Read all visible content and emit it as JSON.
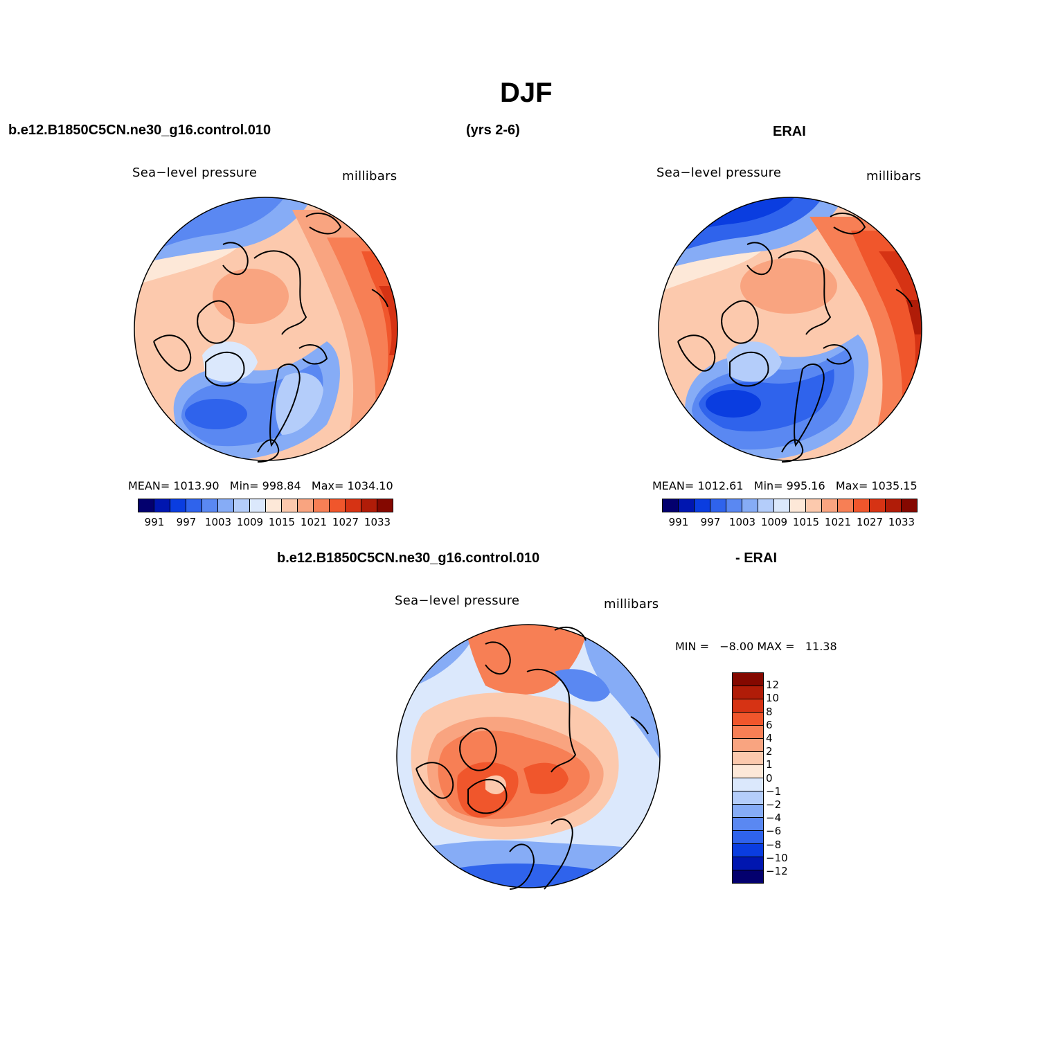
{
  "figure": {
    "title": "DJF",
    "top_left_case": "b.e12.B1850C5CN.ne30_g16.control.010",
    "top_years": "(yrs 2-6)",
    "top_right_case": "ERAI"
  },
  "panel_model": {
    "variable": "Sea−level pressure",
    "units": "millibars",
    "mean_label": "MEAN=",
    "mean": "1013.90",
    "min_label": "Min=",
    "min": "998.84",
    "max_label": "Max=",
    "max": "1034.10"
  },
  "panel_obs": {
    "variable": "Sea−level pressure",
    "units": "millibars",
    "mean_label": "MEAN=",
    "mean": "1012.61",
    "min_label": "Min=",
    "min": "995.16",
    "max_label": "Max=",
    "max": "1035.15"
  },
  "panel_diff": {
    "title_left": "b.e12.B1850C5CN.ne30_g16.control.010",
    "title_right": "- ERAI",
    "variable": "Sea−level pressure",
    "units": "millibars",
    "min_label": "MIN =",
    "min": "−8.00",
    "max_label": "MAX =",
    "max": "11.38"
  },
  "colorbar_abs": {
    "colors": [
      "#03006e",
      "#0016b0",
      "#0a3de0",
      "#2f63ec",
      "#5a88f2",
      "#86acf6",
      "#b4cdfa",
      "#dbe8fc",
      "#fde8d8",
      "#fcc9ad",
      "#f9a480",
      "#f77f55",
      "#f0562c",
      "#d63314",
      "#b01c08",
      "#840800"
    ],
    "ticks": [
      "991",
      "997",
      "1003",
      "1009",
      "1015",
      "1021",
      "1027",
      "1033"
    ]
  },
  "colorbar_diff": {
    "colors": [
      "#840800",
      "#b01c08",
      "#d63314",
      "#f0562c",
      "#f77f55",
      "#f9a480",
      "#fcc9ad",
      "#fde8d8",
      "#dbe8fc",
      "#b4cdfa",
      "#86acf6",
      "#5a88f2",
      "#2f63ec",
      "#0a3de0",
      "#0016b0",
      "#03006e"
    ],
    "ticks": [
      "12",
      "10",
      "8",
      "6",
      "4",
      "2",
      "1",
      "0",
      "−1",
      "−2",
      "−4",
      "−6",
      "−8",
      "−10",
      "−12"
    ]
  }
}
